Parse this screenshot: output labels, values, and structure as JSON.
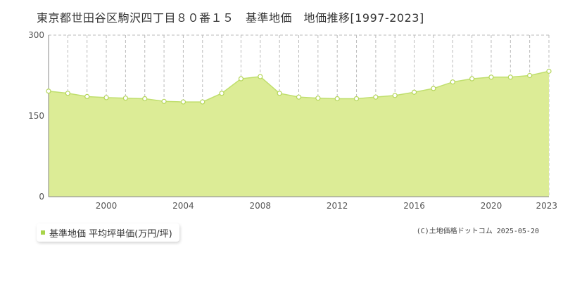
{
  "chart_data": {
    "type": "area",
    "title": "東京都世田谷区駒沢四丁目８０番１５　基準地価　地価推移[1997-2023]",
    "x": [
      1997,
      1998,
      1999,
      2000,
      2001,
      2002,
      2003,
      2004,
      2005,
      2006,
      2007,
      2008,
      2009,
      2010,
      2011,
      2012,
      2013,
      2014,
      2015,
      2016,
      2017,
      2018,
      2019,
      2020,
      2021,
      2022,
      2023
    ],
    "series": [
      {
        "name": "基準地価 平均坪単価(万円/坪)",
        "values": [
          196,
          192,
          186,
          184,
          183,
          182,
          177,
          176,
          176,
          192,
          219,
          223,
          192,
          185,
          183,
          182,
          182,
          185,
          188,
          194,
          201,
          213,
          219,
          222,
          222,
          225,
          233
        ]
      }
    ],
    "xticks": [
      "2000",
      "2004",
      "2008",
      "2012",
      "2016",
      "2020",
      "2023"
    ],
    "xtick_values": [
      2000,
      2004,
      2008,
      2012,
      2016,
      2020,
      2023
    ],
    "yticks": [
      "0",
      "150",
      "300"
    ],
    "ytick_values": [
      0,
      150,
      300
    ],
    "xlim": [
      1997,
      2023
    ],
    "ylim": [
      0,
      300
    ],
    "grid": true,
    "legend_position": "bottom-left",
    "colors": {
      "fill": "#dcec96",
      "line": "#c0df6e",
      "marker_fill": "#ffffff",
      "marker_stroke": "#b5d65a",
      "legend_swatch": "#a8d44a",
      "grid": "#bbbbbb"
    }
  },
  "copyright": "(C)土地価格ドットコム 2025-05-20"
}
